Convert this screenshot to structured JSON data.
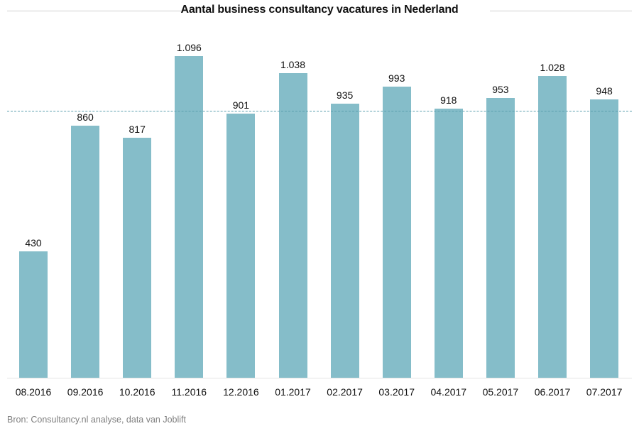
{
  "chart_data": {
    "type": "bar",
    "title": "Aantal business consultancy vacatures in Nederland",
    "xlabel": "",
    "ylabel": "",
    "categories": [
      "08.2016",
      "09.2016",
      "10.2016",
      "11.2016",
      "12.2016",
      "01.2017",
      "02.2017",
      "03.2017",
      "04.2017",
      "05.2017",
      "06.2017",
      "07.2017"
    ],
    "values": [
      430,
      860,
      817,
      1096,
      901,
      1038,
      935,
      993,
      918,
      953,
      1028,
      948
    ],
    "value_labels": [
      "430",
      "860",
      "817",
      "1.096",
      "901",
      "1.038",
      "935",
      "993",
      "918",
      "953",
      "1.028",
      "948"
    ],
    "average_line": 910,
    "ylim": [
      0,
      1100
    ],
    "grid": false,
    "legend": null,
    "bar_color": "#85bdc9",
    "average_line_color": "#5a9fae",
    "source": "Bron: Consultancy.nl analyse, data van Joblift"
  }
}
